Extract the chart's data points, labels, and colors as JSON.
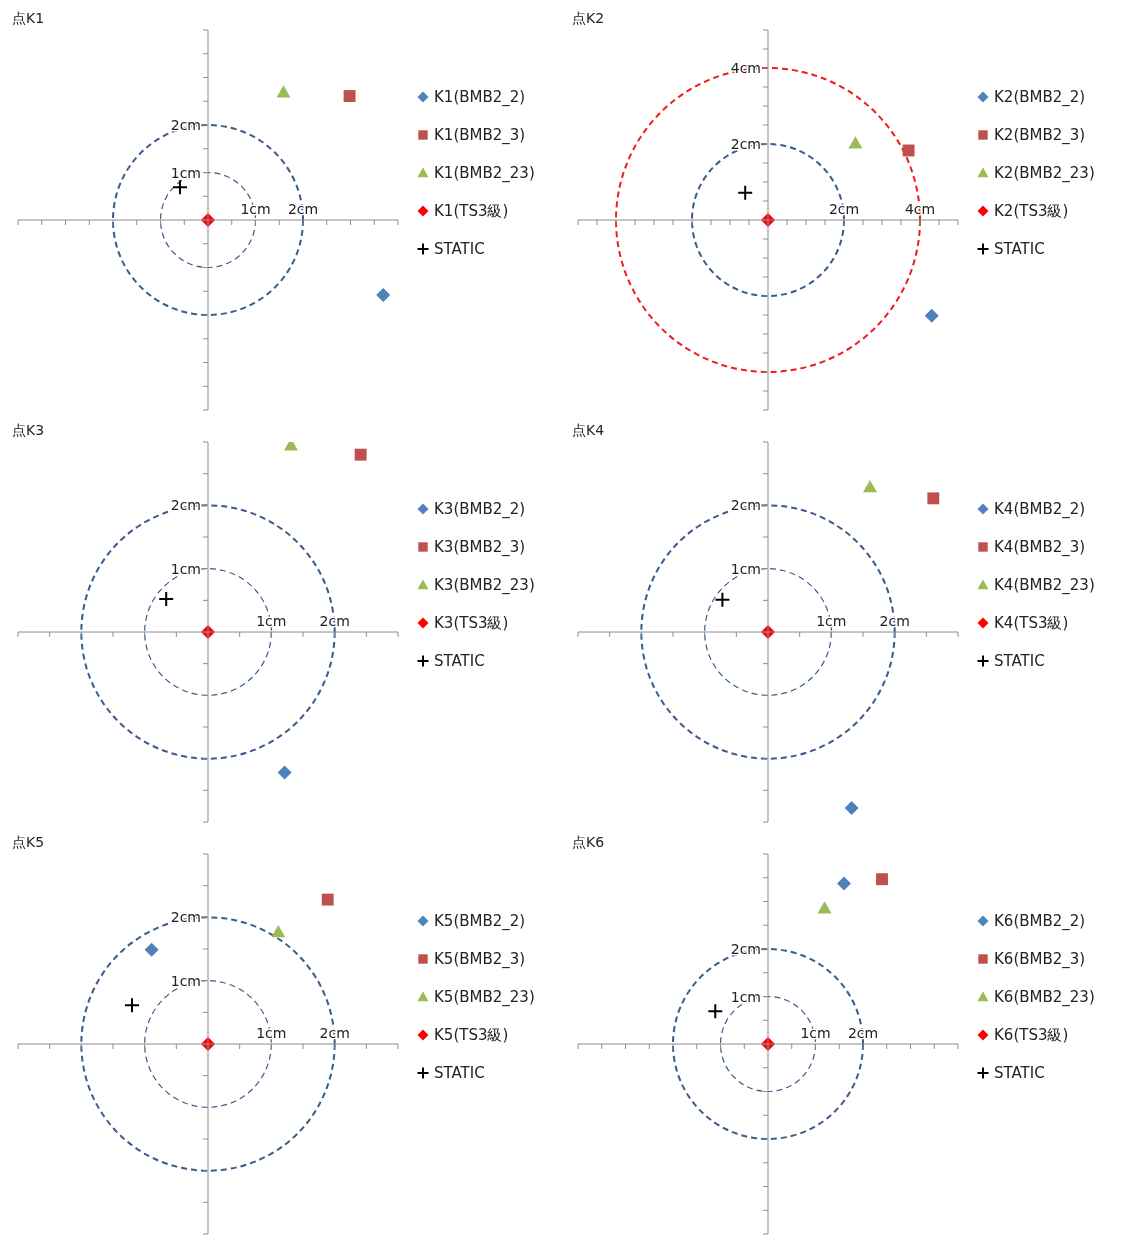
{
  "chart_data": [
    {
      "type": "scatter",
      "title": "点K1",
      "legend": "right",
      "xlim": [
        -4,
        4
      ],
      "ylim": [
        -4,
        4
      ],
      "xticks": [
        {
          "value": -4,
          "label": null
        },
        {
          "value": -3.5,
          "label": null
        },
        {
          "value": -3,
          "label": null
        },
        {
          "value": -2.5,
          "label": null
        },
        {
          "value": -2,
          "label": null
        },
        {
          "value": -1.5,
          "label": null
        },
        {
          "value": -1,
          "label": null
        },
        {
          "value": -0.5,
          "label": null
        },
        {
          "value": 0,
          "label": null
        },
        {
          "value": 0.5,
          "label": null
        },
        {
          "value": 1,
          "label": "1cm"
        },
        {
          "value": 1.5,
          "label": null
        },
        {
          "value": 2,
          "label": "2cm"
        },
        {
          "value": 2.5,
          "label": null
        },
        {
          "value": 3,
          "label": null
        },
        {
          "value": 3.5,
          "label": null
        },
        {
          "value": 4,
          "label": null
        }
      ],
      "yticks": [
        {
          "value": -4,
          "label": null
        },
        {
          "value": -3.5,
          "label": null
        },
        {
          "value": -3,
          "label": null
        },
        {
          "value": -2.5,
          "label": null
        },
        {
          "value": -2,
          "label": null
        },
        {
          "value": -1.5,
          "label": null
        },
        {
          "value": -1,
          "label": null
        },
        {
          "value": -0.5,
          "label": null
        },
        {
          "value": 0,
          "label": null
        },
        {
          "value": 0.5,
          "label": null
        },
        {
          "value": 1,
          "label": "1cm"
        },
        {
          "value": 1.5,
          "label": null
        },
        {
          "value": 2,
          "label": "2cm"
        },
        {
          "value": 2.5,
          "label": null
        },
        {
          "value": 3,
          "label": null
        },
        {
          "value": 3.5,
          "label": null
        },
        {
          "value": 4,
          "label": null
        }
      ],
      "series": [
        {
          "name": "K1(BMB2_2)",
          "color": "#4f81bd",
          "marker": "diamond",
          "x": [
            3.69
          ],
          "values": [
            -1.58
          ]
        },
        {
          "name": "K1(BMB2_3)",
          "color": "#c0504d",
          "marker": "square",
          "x": [
            2.98
          ],
          "values": [
            2.61
          ]
        },
        {
          "name": "K1(BMB2_23)",
          "color": "#9bbb59",
          "marker": "triangle",
          "x": [
            1.59
          ],
          "values": [
            2.69
          ]
        },
        {
          "name": "K1(TS3級)",
          "color": "#ff0000",
          "marker": "diamond",
          "x": [
            0
          ],
          "values": [
            0
          ]
        },
        {
          "name": "STATIC",
          "color": "#000000",
          "marker": "cross",
          "x": [
            -0.59
          ],
          "values": [
            0.69
          ]
        }
      ]
    },
    {
      "type": "scatter",
      "title": "点K2",
      "legend": "right",
      "xlim": [
        -5,
        5
      ],
      "ylim": [
        -5,
        5
      ],
      "xticks": [
        {
          "value": -5,
          "label": null
        },
        {
          "value": -4.5,
          "label": null
        },
        {
          "value": -4,
          "label": null
        },
        {
          "value": -3.5,
          "label": null
        },
        {
          "value": -3,
          "label": null
        },
        {
          "value": -2.5,
          "label": null
        },
        {
          "value": -2,
          "label": null
        },
        {
          "value": -1.5,
          "label": null
        },
        {
          "value": -1,
          "label": null
        },
        {
          "value": -0.5,
          "label": null
        },
        {
          "value": 0,
          "label": null
        },
        {
          "value": 0.5,
          "label": null
        },
        {
          "value": 1,
          "label": null
        },
        {
          "value": 1.5,
          "label": null
        },
        {
          "value": 2,
          "label": "2cm"
        },
        {
          "value": 2.5,
          "label": null
        },
        {
          "value": 3,
          "label": null
        },
        {
          "value": 3.5,
          "label": null
        },
        {
          "value": 4,
          "label": "4cm"
        },
        {
          "value": 4.5,
          "label": null
        },
        {
          "value": 5,
          "label": null
        }
      ],
      "yticks": [
        {
          "value": -5,
          "label": null
        },
        {
          "value": -4.5,
          "label": null
        },
        {
          "value": -4,
          "label": null
        },
        {
          "value": -3.5,
          "label": null
        },
        {
          "value": -3,
          "label": null
        },
        {
          "value": -2.5,
          "label": null
        },
        {
          "value": -2,
          "label": null
        },
        {
          "value": -1.5,
          "label": null
        },
        {
          "value": -1,
          "label": null
        },
        {
          "value": -0.5,
          "label": null
        },
        {
          "value": 0,
          "label": null
        },
        {
          "value": 0.5,
          "label": null
        },
        {
          "value": 1,
          "label": null
        },
        {
          "value": 1.5,
          "label": null
        },
        {
          "value": 2,
          "label": "2cm"
        },
        {
          "value": 2.5,
          "label": null
        },
        {
          "value": 3,
          "label": null
        },
        {
          "value": 3.5,
          "label": null
        },
        {
          "value": 4,
          "label": "4cm"
        },
        {
          "value": 4.5,
          "label": null
        },
        {
          "value": 5,
          "label": null
        }
      ],
      "series": [
        {
          "name": "K2(BMB2_2)",
          "color": "#4f81bd",
          "marker": "diamond",
          "x": [
            4.31
          ],
          "values": [
            -2.52
          ]
        },
        {
          "name": "K2(BMB2_3)",
          "color": "#c0504d",
          "marker": "square",
          "x": [
            3.7
          ],
          "values": [
            1.83
          ]
        },
        {
          "name": "K2(BMB2_23)",
          "color": "#9bbb59",
          "marker": "triangle",
          "x": [
            2.3
          ],
          "values": [
            2.02
          ]
        },
        {
          "name": "K2(TS3級)",
          "color": "#ff0000",
          "marker": "diamond",
          "x": [
            0
          ],
          "values": [
            0
          ]
        },
        {
          "name": "STATIC",
          "color": "#000000",
          "marker": "cross",
          "x": [
            -0.6
          ],
          "values": [
            0.72
          ]
        }
      ]
    },
    {
      "type": "scatter",
      "title": "点K3",
      "legend": "right",
      "xlim": [
        -3,
        3
      ],
      "ylim": [
        -3,
        3
      ],
      "xticks": [
        {
          "value": -3,
          "label": null
        },
        {
          "value": -2.5,
          "label": null
        },
        {
          "value": -2,
          "label": null
        },
        {
          "value": -1.5,
          "label": null
        },
        {
          "value": -1,
          "label": null
        },
        {
          "value": -0.5,
          "label": null
        },
        {
          "value": 0,
          "label": null
        },
        {
          "value": 0.5,
          "label": null
        },
        {
          "value": 1,
          "label": "1cm"
        },
        {
          "value": 1.5,
          "label": null
        },
        {
          "value": 2,
          "label": "2cm"
        },
        {
          "value": 2.5,
          "label": null
        },
        {
          "value": 3,
          "label": null
        }
      ],
      "yticks": [
        {
          "value": -3,
          "label": null
        },
        {
          "value": -2.5,
          "label": null
        },
        {
          "value": -2,
          "label": null
        },
        {
          "value": -1.5,
          "label": null
        },
        {
          "value": -1,
          "label": null
        },
        {
          "value": -0.5,
          "label": null
        },
        {
          "value": 0,
          "label": null
        },
        {
          "value": 0.5,
          "label": null
        },
        {
          "value": 1,
          "label": "1cm"
        },
        {
          "value": 1.5,
          "label": null
        },
        {
          "value": 2,
          "label": "2cm"
        },
        {
          "value": 2.5,
          "label": null
        },
        {
          "value": 3,
          "label": null
        }
      ],
      "series": [
        {
          "name": "K3(BMB2_2)",
          "color": "#4f81bd",
          "marker": "diamond",
          "x": [
            1.21
          ],
          "values": [
            -2.22
          ]
        },
        {
          "name": "K3(BMB2_3)",
          "color": "#c0504d",
          "marker": "square",
          "x": [
            2.41
          ],
          "values": [
            2.8
          ]
        },
        {
          "name": "K3(BMB2_23)",
          "color": "#9bbb59",
          "marker": "triangle",
          "x": [
            1.31
          ],
          "values": [
            2.95
          ]
        },
        {
          "name": "K3(TS3級)",
          "color": "#ff0000",
          "marker": "diamond",
          "x": [
            0
          ],
          "values": [
            0
          ]
        },
        {
          "name": "STATIC",
          "color": "#000000",
          "marker": "cross",
          "x": [
            -0.66
          ],
          "values": [
            0.52
          ]
        }
      ]
    },
    {
      "type": "scatter",
      "title": "点K4",
      "legend": "right",
      "xlim": [
        -3,
        3
      ],
      "ylim": [
        -3,
        3
      ],
      "xticks": [
        {
          "value": -3,
          "label": null
        },
        {
          "value": -2.5,
          "label": null
        },
        {
          "value": -2,
          "label": null
        },
        {
          "value": -1.5,
          "label": null
        },
        {
          "value": -1,
          "label": null
        },
        {
          "value": -0.5,
          "label": null
        },
        {
          "value": 0,
          "label": null
        },
        {
          "value": 0.5,
          "label": null
        },
        {
          "value": 1,
          "label": "1cm"
        },
        {
          "value": 1.5,
          "label": null
        },
        {
          "value": 2,
          "label": "2cm"
        },
        {
          "value": 2.5,
          "label": null
        },
        {
          "value": 3,
          "label": null
        }
      ],
      "yticks": [
        {
          "value": -3,
          "label": null
        },
        {
          "value": -2.5,
          "label": null
        },
        {
          "value": -2,
          "label": null
        },
        {
          "value": -1.5,
          "label": null
        },
        {
          "value": -1,
          "label": null
        },
        {
          "value": -0.5,
          "label": null
        },
        {
          "value": 0,
          "label": null
        },
        {
          "value": 0.5,
          "label": null
        },
        {
          "value": 1,
          "label": "1cm"
        },
        {
          "value": 1.5,
          "label": null
        },
        {
          "value": 2,
          "label": "2cm"
        },
        {
          "value": 2.5,
          "label": null
        },
        {
          "value": 3,
          "label": null
        }
      ],
      "series": [
        {
          "name": "K4(BMB2_2)",
          "color": "#4f81bd",
          "marker": "diamond",
          "x": [
            1.32
          ],
          "values": [
            -2.78
          ]
        },
        {
          "name": "K4(BMB2_3)",
          "color": "#c0504d",
          "marker": "square",
          "x": [
            2.61
          ],
          "values": [
            2.11
          ]
        },
        {
          "name": "K4(BMB2_23)",
          "color": "#9bbb59",
          "marker": "triangle",
          "x": [
            1.61
          ],
          "values": [
            2.29
          ]
        },
        {
          "name": "K4(TS3級)",
          "color": "#ff0000",
          "marker": "diamond",
          "x": [
            0
          ],
          "values": [
            0
          ]
        },
        {
          "name": "STATIC",
          "color": "#000000",
          "marker": "cross",
          "x": [
            -0.72
          ],
          "values": [
            0.51
          ]
        }
      ]
    },
    {
      "type": "scatter",
      "title": "点K5",
      "legend": "right",
      "xlim": [
        -3,
        3
      ],
      "ylim": [
        -3,
        3
      ],
      "xticks": [
        {
          "value": -3,
          "label": null
        },
        {
          "value": -2.5,
          "label": null
        },
        {
          "value": -2,
          "label": null
        },
        {
          "value": -1.5,
          "label": null
        },
        {
          "value": -1,
          "label": null
        },
        {
          "value": -0.5,
          "label": null
        },
        {
          "value": 0,
          "label": null
        },
        {
          "value": 0.5,
          "label": null
        },
        {
          "value": 1,
          "label": "1cm"
        },
        {
          "value": 1.5,
          "label": null
        },
        {
          "value": 2,
          "label": "2cm"
        },
        {
          "value": 2.5,
          "label": null
        },
        {
          "value": 3,
          "label": null
        }
      ],
      "yticks": [
        {
          "value": -3,
          "label": null
        },
        {
          "value": -2.5,
          "label": null
        },
        {
          "value": -2,
          "label": null
        },
        {
          "value": -1.5,
          "label": null
        },
        {
          "value": -1,
          "label": null
        },
        {
          "value": -0.5,
          "label": null
        },
        {
          "value": 0,
          "label": null
        },
        {
          "value": 0.5,
          "label": null
        },
        {
          "value": 1,
          "label": "1cm"
        },
        {
          "value": 1.5,
          "label": null
        },
        {
          "value": 2,
          "label": "2cm"
        },
        {
          "value": 2.5,
          "label": null
        },
        {
          "value": 3,
          "label": null
        }
      ],
      "series": [
        {
          "name": "K5(BMB2_2)",
          "color": "#4f81bd",
          "marker": "diamond",
          "x": [
            -0.89
          ],
          "values": [
            1.49
          ]
        },
        {
          "name": "K5(BMB2_3)",
          "color": "#c0504d",
          "marker": "square",
          "x": [
            1.89
          ],
          "values": [
            2.28
          ]
        },
        {
          "name": "K5(BMB2_23)",
          "color": "#9bbb59",
          "marker": "triangle",
          "x": [
            1.11
          ],
          "values": [
            1.77
          ]
        },
        {
          "name": "K5(TS3級)",
          "color": "#ff0000",
          "marker": "diamond",
          "x": [
            0
          ],
          "values": [
            0
          ]
        },
        {
          "name": "STATIC",
          "color": "#000000",
          "marker": "cross",
          "x": [
            -1.2
          ],
          "values": [
            0.61
          ]
        }
      ]
    },
    {
      "type": "scatter",
      "title": "点K6",
      "legend": "right",
      "xlim": [
        -4,
        4
      ],
      "ylim": [
        -4,
        4
      ],
      "xticks": [
        {
          "value": -4,
          "label": null
        },
        {
          "value": -3.5,
          "label": null
        },
        {
          "value": -3,
          "label": null
        },
        {
          "value": -2.5,
          "label": null
        },
        {
          "value": -2,
          "label": null
        },
        {
          "value": -1.5,
          "label": null
        },
        {
          "value": -1,
          "label": null
        },
        {
          "value": -0.5,
          "label": null
        },
        {
          "value": 0,
          "label": null
        },
        {
          "value": 0.5,
          "label": null
        },
        {
          "value": 1,
          "label": "1cm"
        },
        {
          "value": 1.5,
          "label": null
        },
        {
          "value": 2,
          "label": "2cm"
        },
        {
          "value": 2.5,
          "label": null
        },
        {
          "value": 3,
          "label": null
        },
        {
          "value": 3.5,
          "label": null
        },
        {
          "value": 4,
          "label": null
        }
      ],
      "yticks": [
        {
          "value": -4,
          "label": null
        },
        {
          "value": -3.5,
          "label": null
        },
        {
          "value": -3,
          "label": null
        },
        {
          "value": -2.5,
          "label": null
        },
        {
          "value": -2,
          "label": null
        },
        {
          "value": -1.5,
          "label": null
        },
        {
          "value": -1,
          "label": null
        },
        {
          "value": -0.5,
          "label": null
        },
        {
          "value": 0,
          "label": null
        },
        {
          "value": 0.5,
          "label": null
        },
        {
          "value": 1,
          "label": "1cm"
        },
        {
          "value": 1.5,
          "label": null
        },
        {
          "value": 2,
          "label": "2cm"
        },
        {
          "value": 2.5,
          "label": null
        },
        {
          "value": 3,
          "label": null
        },
        {
          "value": 3.5,
          "label": null
        },
        {
          "value": 4,
          "label": null
        }
      ],
      "series": [
        {
          "name": "K6(BMB2_2)",
          "color": "#4f81bd",
          "marker": "diamond",
          "x": [
            1.6
          ],
          "values": [
            3.38
          ]
        },
        {
          "name": "K6(BMB2_3)",
          "color": "#c0504d",
          "marker": "square",
          "x": [
            2.4
          ],
          "values": [
            3.47
          ]
        },
        {
          "name": "K6(BMB2_23)",
          "color": "#9bbb59",
          "marker": "triangle",
          "x": [
            1.19
          ],
          "values": [
            2.86
          ]
        },
        {
          "name": "K6(TS3級)",
          "color": "#ff0000",
          "marker": "diamond",
          "x": [
            0
          ],
          "values": [
            0
          ]
        },
        {
          "name": "STATIC",
          "color": "#000000",
          "marker": "cross",
          "x": [
            -1.11
          ],
          "values": [
            0.69
          ]
        }
      ]
    }
  ]
}
